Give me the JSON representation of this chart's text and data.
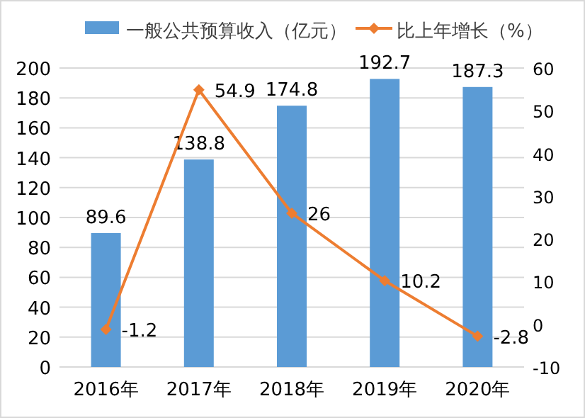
{
  "chart_data": {
    "type": "bar",
    "categories": [
      "2016年",
      "2017年",
      "2018年",
      "2019年",
      "2020年"
    ],
    "series": [
      {
        "name": "一般公共预算收入（亿元）",
        "color": "#5b9bd5",
        "values": [
          89.6,
          138.8,
          174.8,
          192.7,
          187.3
        ]
      },
      {
        "name": "比上年增长（%）",
        "type": "line",
        "axis": "y2",
        "color": "#ed7d31",
        "marker": "diamond",
        "values": [
          -1.2,
          54.9,
          26,
          10.2,
          -2.8
        ]
      }
    ],
    "ylim": [
      0,
      200
    ],
    "yticks": [
      0,
      20,
      40,
      60,
      80,
      100,
      120,
      140,
      160,
      180,
      200
    ],
    "y2lim": [
      -10,
      60
    ],
    "y2ticks": [
      -10,
      0,
      10,
      20,
      30,
      40,
      50,
      60
    ],
    "grid": "y",
    "legend": "top",
    "data_labels": true
  }
}
